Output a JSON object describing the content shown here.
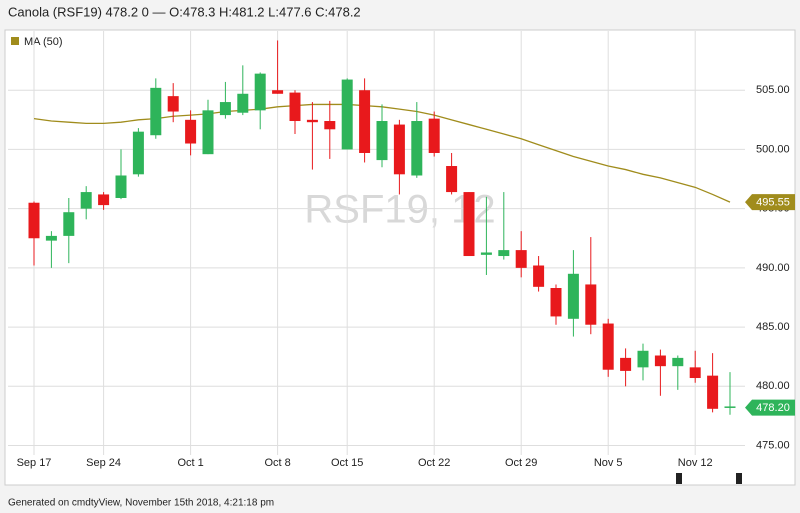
{
  "header": "Canola (RSF19) 478.2 0 — O:478.3 H:481.2 L:477.6 C:478.2",
  "footer": "Generated on cmdtyView, November 15th 2018, 4:21:18 pm",
  "chart_data": {
    "type": "candlestick",
    "watermark": "RSF19, 12",
    "categories": [
      "Sep 17",
      null,
      null,
      null,
      "Sep 24",
      null,
      null,
      null,
      null,
      "Oct 1",
      null,
      null,
      null,
      null,
      "Oct 8",
      null,
      null,
      null,
      "Oct 15",
      null,
      null,
      null,
      null,
      "Oct 22",
      null,
      null,
      null,
      null,
      "Oct 29",
      null,
      null,
      null,
      null,
      "Nov 5",
      null,
      null,
      null,
      null,
      "Nov 12",
      null,
      null
    ],
    "open": [
      495.5,
      492.3,
      492.7,
      495.0,
      496.2,
      495.9,
      497.9,
      501.2,
      504.5,
      502.5,
      499.6,
      502.9,
      503.1,
      503.3,
      505.0,
      504.8,
      502.5,
      502.4,
      500.0,
      505.0,
      499.1,
      502.1,
      497.8,
      502.6,
      498.6,
      496.4,
      491.1,
      491.0,
      491.5,
      490.2,
      488.3,
      485.7,
      488.6,
      485.3,
      482.4,
      481.6,
      482.6,
      481.7,
      481.6,
      480.9,
      478.3
    ],
    "high": [
      495.6,
      493.1,
      495.9,
      496.9,
      496.4,
      500.0,
      501.8,
      506.0,
      505.6,
      503.3,
      504.2,
      505.7,
      507.1,
      506.5,
      509.2,
      505.0,
      504.0,
      504.1,
      506.0,
      506.0,
      503.8,
      502.5,
      504.0,
      503.2,
      499.7,
      496.4,
      496.0,
      496.4,
      493.1,
      491.0,
      488.6,
      491.5,
      492.6,
      485.7,
      483.2,
      483.6,
      483.1,
      482.6,
      483.0,
      482.8,
      481.2
    ],
    "low": [
      490.2,
      490.0,
      490.4,
      494.1,
      494.9,
      495.8,
      497.7,
      500.9,
      502.3,
      499.5,
      499.6,
      502.6,
      502.9,
      501.7,
      504.7,
      501.3,
      498.3,
      499.2,
      500.0,
      498.9,
      498.5,
      496.2,
      497.6,
      499.4,
      496.2,
      491.0,
      489.4,
      490.7,
      489.2,
      488.0,
      485.2,
      484.2,
      484.4,
      480.8,
      480.0,
      480.5,
      479.2,
      479.7,
      480.3,
      477.8,
      477.6
    ],
    "close": [
      492.5,
      492.7,
      494.7,
      496.4,
      495.3,
      497.8,
      501.5,
      505.2,
      503.2,
      500.5,
      503.3,
      504.0,
      504.7,
      506.4,
      504.7,
      502.4,
      502.3,
      501.7,
      505.9,
      499.7,
      502.4,
      497.9,
      502.4,
      499.7,
      496.4,
      491.0,
      491.3,
      491.5,
      490.0,
      488.4,
      485.9,
      489.5,
      485.2,
      481.4,
      481.3,
      483.0,
      481.7,
      482.4,
      480.7,
      478.1,
      478.2
    ],
    "up_color": "#2eb45a",
    "down_color": "#e8191c",
    "overlay": {
      "name": "MA (50)",
      "color": "#a08c1c",
      "values": [
        502.6,
        502.4,
        502.3,
        502.2,
        502.2,
        502.3,
        502.5,
        502.6,
        502.8,
        502.9,
        503.0,
        503.2,
        503.3,
        503.4,
        503.6,
        503.7,
        503.8,
        503.8,
        503.8,
        503.7,
        503.6,
        503.4,
        503.2,
        502.9,
        502.5,
        502.1,
        501.7,
        501.3,
        500.9,
        500.4,
        499.9,
        499.4,
        499.0,
        498.6,
        498.3,
        497.9,
        497.6,
        497.2,
        496.8,
        496.2,
        495.55
      ]
    },
    "price_labels": [
      {
        "value": 495.55,
        "label": "495.55",
        "color": "#a08c1c"
      },
      {
        "value": 478.2,
        "label": "478.20",
        "color": "#2eb45a"
      }
    ],
    "ylim": [
      474.2,
      510
    ],
    "yticks": [
      {
        "value": 475,
        "label": "475.00"
      },
      {
        "value": 480,
        "label": "480.00"
      },
      {
        "value": 485,
        "label": "485.00"
      },
      {
        "value": 490,
        "label": "490.00"
      },
      {
        "value": 495,
        "label": "495.00"
      },
      {
        "value": 500,
        "label": "500.00"
      },
      {
        "value": 505,
        "label": "505.00"
      }
    ],
    "grid": true
  }
}
